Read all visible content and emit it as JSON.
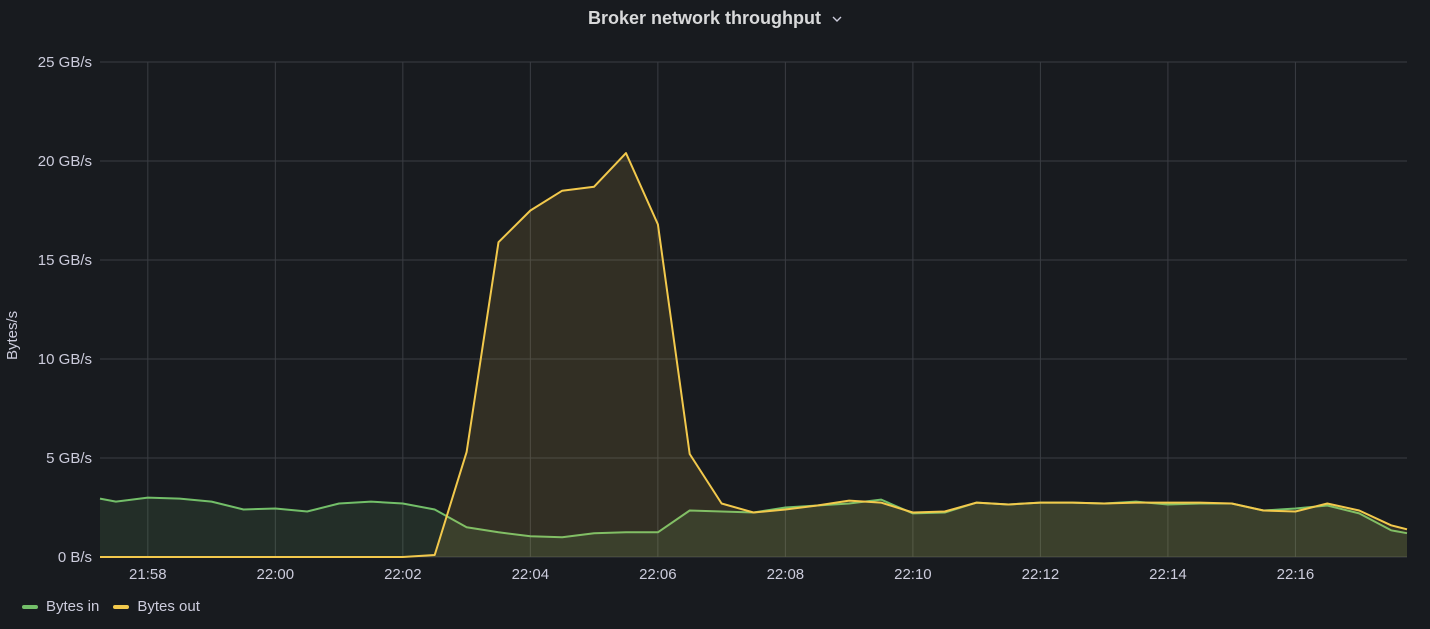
{
  "panel": {
    "title": "Broker network throughput"
  },
  "colors": {
    "bytes_in": "#73bf69",
    "bytes_out": "#f2c94c",
    "grid": "#3a3d43",
    "text": "#ccccdc"
  },
  "chart_data": {
    "type": "area",
    "title": "Broker network throughput",
    "ylabel": "Bytes/s",
    "xlabel": "",
    "ylim": [
      0,
      25
    ],
    "y_unit": "GB/s",
    "y_ticks": [
      "0 B/s",
      "5 GB/s",
      "10 GB/s",
      "15 GB/s",
      "20 GB/s",
      "25 GB/s"
    ],
    "x_ticks": [
      "21:58",
      "22:00",
      "22:02",
      "22:04",
      "22:06",
      "22:08",
      "22:10",
      "22:12",
      "22:14",
      "22:16"
    ],
    "x_range": [
      "21:57:15",
      "21:57:30",
      "21:58:00",
      "21:58:30",
      "21:59:00",
      "21:59:30",
      "22:00:00",
      "22:00:30",
      "22:01:00",
      "22:01:30",
      "22:02:00",
      "22:02:30",
      "22:03:00",
      "22:03:30",
      "22:04:00",
      "22:04:30",
      "22:05:00",
      "22:05:30",
      "22:06:00",
      "22:06:30",
      "22:07:00",
      "22:07:30",
      "22:08:00",
      "22:08:30",
      "22:09:00",
      "22:09:30",
      "22:10:00",
      "22:10:30",
      "22:11:00",
      "22:11:30",
      "22:12:00",
      "22:12:30",
      "22:13:00",
      "22:13:30",
      "22:14:00",
      "22:14:30",
      "22:15:00",
      "22:15:30",
      "22:16:00",
      "22:16:30",
      "22:17:00",
      "22:17:30",
      "22:17:45"
    ],
    "grid": true,
    "legend_position": "bottom-left",
    "x_minutes": [
      -0.75,
      -0.5,
      0,
      0.5,
      1,
      1.5,
      2,
      2.5,
      3,
      3.5,
      4,
      4.5,
      5,
      5.5,
      6,
      6.5,
      7,
      7.5,
      8,
      8.5,
      9,
      9.5,
      10,
      10.5,
      11,
      11.5,
      12,
      12.5,
      13,
      13.5,
      14,
      14.5,
      15,
      15.5,
      16,
      16.5,
      17,
      17.5,
      18,
      18.5,
      19,
      19.5,
      19.75
    ],
    "series": [
      {
        "name": "Bytes in",
        "color_key": "bytes_in",
        "values": [
          2.95,
          2.8,
          3.0,
          2.95,
          2.8,
          2.4,
          2.45,
          2.3,
          2.7,
          2.8,
          2.7,
          2.4,
          1.5,
          1.25,
          1.05,
          1.0,
          1.2,
          1.25,
          1.25,
          2.35,
          2.3,
          2.25,
          2.5,
          2.6,
          2.7,
          2.9,
          2.2,
          2.25,
          2.75,
          2.65,
          2.75,
          2.75,
          2.7,
          2.8,
          2.65,
          2.7,
          2.7,
          2.35,
          2.45,
          2.6,
          2.2,
          1.35,
          1.2
        ]
      },
      {
        "name": "Bytes out",
        "color_key": "bytes_out",
        "values": [
          0,
          0,
          0,
          0,
          0,
          0,
          0,
          0,
          0,
          0,
          0,
          0.1,
          5.3,
          15.9,
          17.5,
          18.5,
          18.7,
          20.4,
          16.8,
          5.2,
          2.7,
          2.25,
          2.4,
          2.6,
          2.85,
          2.75,
          2.25,
          2.3,
          2.75,
          2.65,
          2.75,
          2.75,
          2.7,
          2.75,
          2.75,
          2.75,
          2.7,
          2.35,
          2.3,
          2.7,
          2.35,
          1.6,
          1.4
        ]
      }
    ]
  }
}
